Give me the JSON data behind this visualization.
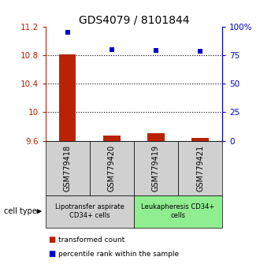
{
  "title": "GDS4079 / 8101844",
  "samples": [
    "GSM779418",
    "GSM779420",
    "GSM779419",
    "GSM779421"
  ],
  "x_positions": [
    1,
    2,
    3,
    4
  ],
  "bar_values": [
    10.81,
    9.68,
    9.71,
    9.64
  ],
  "bar_base": 9.6,
  "scatter_values": [
    11.12,
    10.88,
    10.87,
    10.85
  ],
  "ylim_left": [
    9.6,
    11.2
  ],
  "ylim_right": [
    0,
    100
  ],
  "yticks_left": [
    9.6,
    10.0,
    10.4,
    10.8,
    11.2
  ],
  "ytick_labels_left": [
    "9.6",
    "10",
    "10.4",
    "10.8",
    "11.2"
  ],
  "yticks_right": [
    0,
    25,
    50,
    75,
    100
  ],
  "ytick_labels_right": [
    "0",
    "25",
    "50",
    "75",
    "100%"
  ],
  "hlines": [
    10.0,
    10.4,
    10.8
  ],
  "bar_color": "#BB2200",
  "scatter_color": "#0000CC",
  "group1_label": "Lipotransfer aspirate\nCD34+ cells",
  "group2_label": "Leukapheresis CD34+\ncells",
  "group1_color": "#d0d0d0",
  "group2_color": "#90EE90",
  "cell_type_label": "cell type",
  "legend_bar_label": "transformed count",
  "legend_scatter_label": "percentile rank within the sample",
  "title_fontsize": 10,
  "tick_fontsize": 7.5,
  "sample_fontsize": 7,
  "group_fontsize": 6,
  "legend_fontsize": 6.5
}
